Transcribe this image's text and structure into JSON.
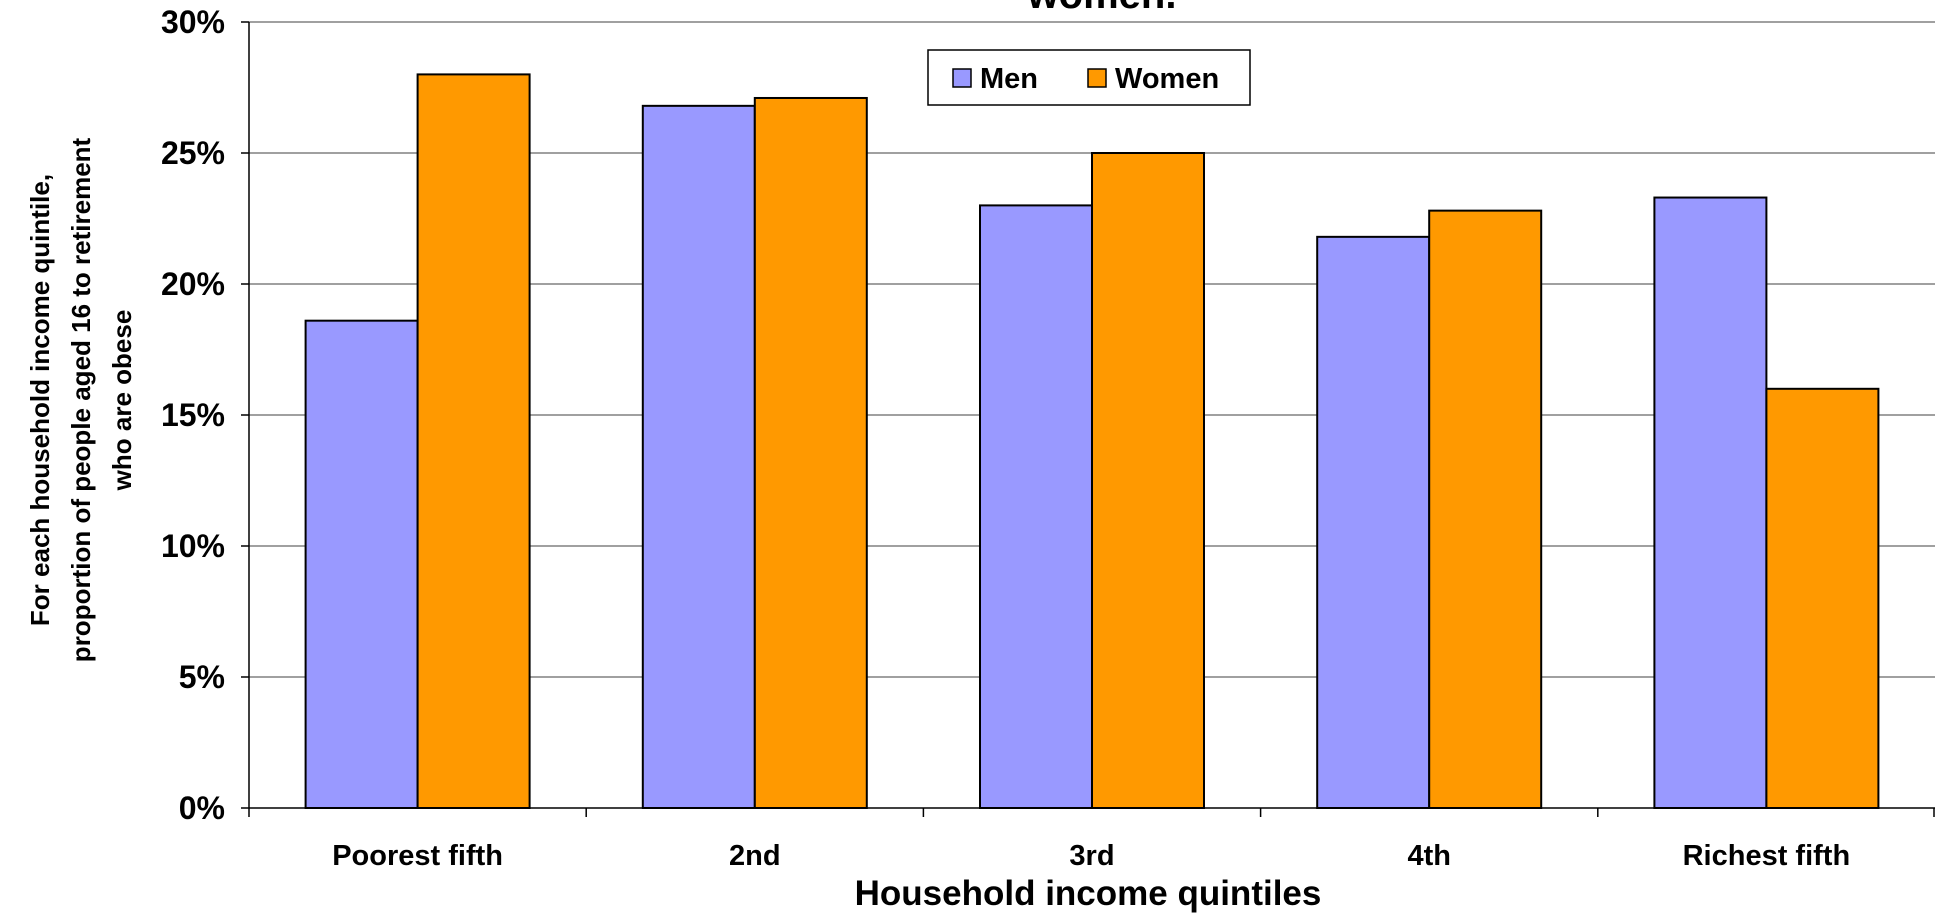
{
  "chart_data": {
    "type": "bar",
    "title": "women.",
    "xlabel": "Household income quintiles",
    "ylabel": [
      "For each household income quintile,",
      "proportion of people aged 16 to retirement",
      "who are obese"
    ],
    "categories": [
      "Poorest fifth",
      "2nd",
      "3rd",
      "4th",
      "Richest fifth"
    ],
    "series": [
      {
        "name": "Men",
        "color": "#9999ff",
        "values": [
          18.6,
          26.8,
          23.0,
          21.8,
          23.3
        ]
      },
      {
        "name": "Women",
        "color": "#ff9900",
        "values": [
          28.0,
          27.1,
          25.0,
          22.8,
          16.0
        ]
      }
    ],
    "ylim": [
      0,
      30
    ],
    "yticks": [
      0,
      5,
      10,
      15,
      20,
      25,
      30
    ],
    "ytick_labels": [
      "0%",
      "5%",
      "10%",
      "15%",
      "20%",
      "25%",
      "30%"
    ],
    "grid": true,
    "legend_position": "top-center"
  }
}
